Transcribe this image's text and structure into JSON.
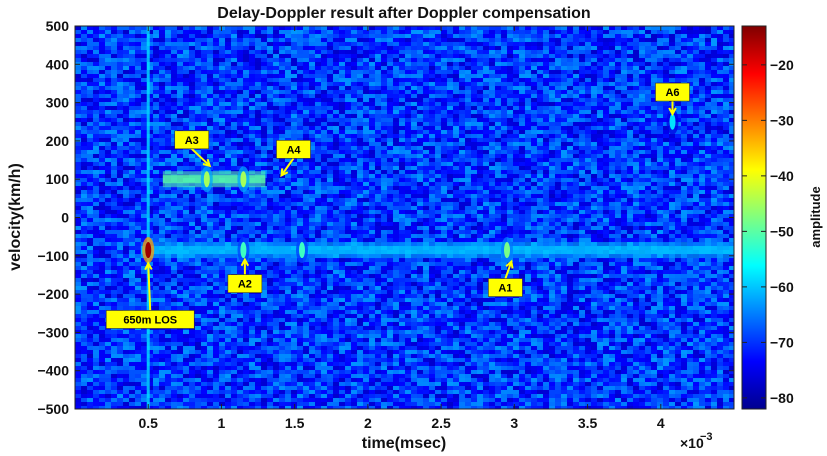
{
  "chart_data": {
    "type": "heatmap",
    "title": "Delay-Doppler result after Doppler compensation",
    "xlabel": "time(msec)",
    "ylabel": "velocity(km/h)",
    "x_exponent_label": "×10",
    "x_exponent_power": "−3",
    "xlim": [
      0,
      0.0045
    ],
    "ylim": [
      -500,
      500
    ],
    "x_ticks": [
      0.0005,
      0.001,
      0.0015,
      0.002,
      0.0025,
      0.003,
      0.0035,
      0.004
    ],
    "x_tick_labels": [
      "0.5",
      "1",
      "1.5",
      "2",
      "2.5",
      "3",
      "3.5",
      "4"
    ],
    "y_ticks": [
      500,
      400,
      300,
      200,
      100,
      0,
      -100,
      -200,
      -300,
      -400,
      -500
    ],
    "y_tick_labels": [
      "500",
      "400",
      "300",
      "200",
      "100",
      "0",
      "−100",
      "−200",
      "−300",
      "−400",
      "−500"
    ],
    "colorbar": {
      "label": "amplitude",
      "range": [
        -82,
        -13
      ],
      "ticks": [
        -20,
        -30,
        -40,
        -50,
        -60,
        -70,
        -80
      ],
      "tick_labels": [
        "−20",
        "−30",
        "−40",
        "−50",
        "−60",
        "−70",
        "−80"
      ],
      "colormap": "jet"
    },
    "background_level": -70,
    "features": [
      {
        "kind": "vertical-line",
        "x": 0.0005,
        "level": -58
      },
      {
        "kind": "band",
        "y": -85,
        "x_from": 0.00045,
        "x_to": 0.0045,
        "level": -60
      },
      {
        "kind": "band",
        "y": 100,
        "x_from": 0.0006,
        "x_to": 0.0013,
        "level": -50
      },
      {
        "kind": "blob",
        "x": 0.0005,
        "y": -85,
        "level": -15
      },
      {
        "kind": "blob",
        "x": 0.00115,
        "y": -85,
        "level": -52
      },
      {
        "kind": "blob",
        "x": 0.00155,
        "y": -85,
        "level": -52
      },
      {
        "kind": "blob",
        "x": 0.00295,
        "y": -85,
        "level": -48
      },
      {
        "kind": "blob",
        "x": 0.0009,
        "y": 100,
        "level": -45
      },
      {
        "kind": "blob",
        "x": 0.00115,
        "y": 100,
        "level": -45
      },
      {
        "kind": "blob",
        "x": 0.00408,
        "y": 250,
        "level": -58
      }
    ],
    "annotations": [
      {
        "label": "A3",
        "x": 0.00092,
        "y": 135
      },
      {
        "label": "A4",
        "x": 0.00141,
        "y": 110
      },
      {
        "label": "A2",
        "x": 0.00116,
        "y": -110
      },
      {
        "label": "A1",
        "x": 0.00298,
        "y": -115
      },
      {
        "label": "A6",
        "x": 0.00408,
        "y": 270
      },
      {
        "label": "650m LOS",
        "x": 0.0005,
        "y": -120
      }
    ]
  }
}
